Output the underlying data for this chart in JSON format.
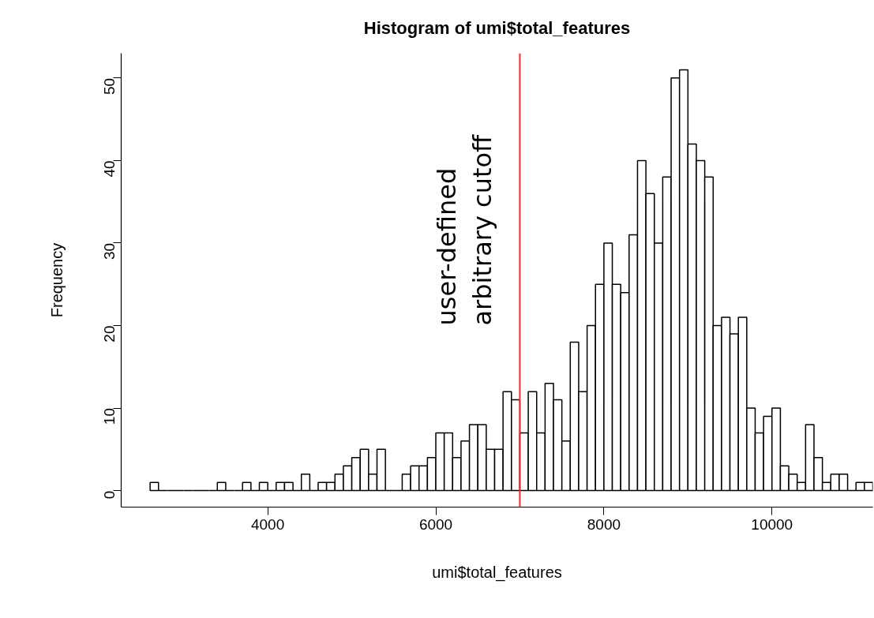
{
  "chart_data": {
    "type": "histogram",
    "title": "Histogram of umi$total_features",
    "xlabel": "umi$total_features",
    "ylabel": "Frequency",
    "bins": [
      2600,
      2700,
      2800,
      2900,
      3000,
      3100,
      3200,
      3300,
      3400,
      3500,
      3600,
      3700,
      3800,
      3900,
      4000,
      4100,
      4200,
      4300,
      4400,
      4500,
      4600,
      4700,
      4800,
      4900,
      5000,
      5100,
      5200,
      5300,
      5400,
      5500,
      5600,
      5700,
      5800,
      5900,
      6000,
      6100,
      6200,
      6300,
      6400,
      6500,
      6600,
      6700,
      6800,
      6900,
      7000,
      7100,
      7200,
      7300,
      7400,
      7500,
      7600,
      7700,
      7800,
      7900,
      8000,
      8100,
      8200,
      8300,
      8400,
      8500,
      8600,
      8700,
      8800,
      8900,
      9000,
      9100,
      9200,
      9300,
      9400,
      9500,
      9600,
      9700,
      9800,
      9900,
      10000,
      10100,
      10200,
      10300,
      10400,
      10500,
      10600,
      10700,
      10800,
      10900,
      11000,
      11100,
      11200
    ],
    "values": [
      1,
      0,
      0,
      0,
      0,
      0,
      0,
      0,
      1,
      0,
      0,
      1,
      0,
      1,
      0,
      1,
      1,
      0,
      2,
      0,
      1,
      1,
      2,
      3,
      4,
      5,
      2,
      5,
      0,
      0,
      2,
      3,
      3,
      4,
      7,
      7,
      4,
      6,
      8,
      8,
      5,
      5,
      12,
      11,
      7,
      12,
      7,
      13,
      11,
      6,
      18,
      12,
      20,
      25,
      30,
      25,
      24,
      31,
      40,
      36,
      30,
      38,
      50,
      51,
      42,
      40,
      38,
      20,
      21,
      19,
      21,
      10,
      7,
      9,
      10,
      3,
      2,
      1,
      8,
      4,
      1,
      2,
      2,
      0,
      1,
      1
    ],
    "xlim": [
      2256,
      11200
    ],
    "ylim": [
      -2,
      53
    ],
    "xticks": [
      4000,
      6000,
      8000,
      10000
    ],
    "yticks": [
      0,
      10,
      20,
      30,
      40,
      50
    ],
    "grid": false,
    "ref_lines": [
      {
        "axis": "x",
        "value": 7000,
        "label": "user-defined\narbitrary cutoff",
        "color": "#ff2a2a"
      }
    ]
  }
}
